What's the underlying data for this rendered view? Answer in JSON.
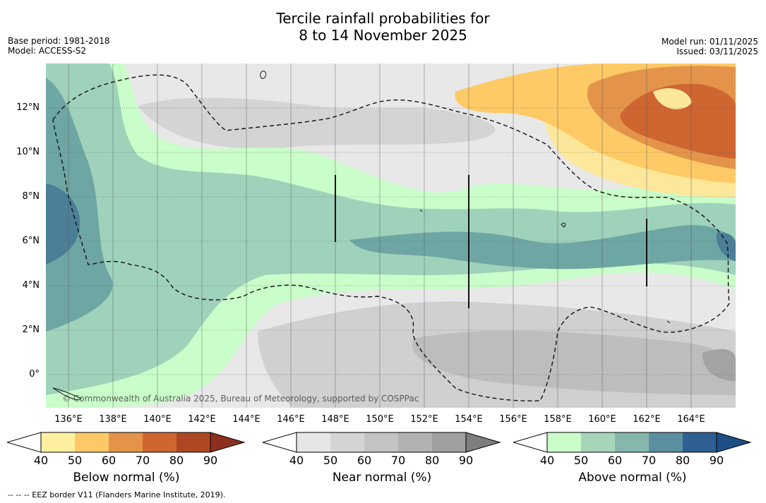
{
  "title_line1": "Tercile rainfall probabilities for",
  "title_line2": "8 to 14 November 2025",
  "base_period": "Base period: 1981-2018",
  "model": "Model: ACCESS-S2",
  "model_run": "Model run: 01/11/2025",
  "issued": "Issued: 03/11/2025",
  "credit": "© Commonwealth of Australia 2025, Bureau of Meteorology, supported by COSPPac",
  "footnote": "--  --  -- EEZ border V11 (Flanders Marine Institute, 2019).",
  "lat_labels": [
    "12°N",
    "10°N",
    "8°N",
    "6°N",
    "4°N",
    "2°N",
    "0°"
  ],
  "lon_labels": [
    "136°E",
    "138°E",
    "140°E",
    "142°E",
    "144°E",
    "146°E",
    "148°E",
    "150°E",
    "152°E",
    "154°E",
    "156°E",
    "158°E",
    "160°E",
    "162°E",
    "164°E"
  ],
  "colorbars": [
    {
      "title": "Below normal (%)",
      "ticks": [
        "40",
        "50",
        "60",
        "70",
        "80",
        "90"
      ],
      "colors": [
        "#fff0a0",
        "#fdc966",
        "#e3944a",
        "#cf6530",
        "#ad4822",
        "#8c2f1e"
      ]
    },
    {
      "title": "Near normal (%)",
      "ticks": [
        "40",
        "50",
        "60",
        "70",
        "80",
        "90"
      ],
      "colors": [
        "#e6e6e6",
        "#d4d4d4",
        "#c3c3c3",
        "#b1b1b1",
        "#9f9f9f",
        "#7e7e7e"
      ]
    },
    {
      "title": "Above normal (%)",
      "ticks": [
        "40",
        "50",
        "60",
        "70",
        "80",
        "90"
      ],
      "colors": [
        "#c9fdc9",
        "#a6d6b9",
        "#86b7ac",
        "#5b8fa0",
        "#2f5f93",
        "#1e4e86"
      ]
    }
  ],
  "map_colors": {
    "below": [
      "#fde79a",
      "#fdca66",
      "#e3944a",
      "#cf6530"
    ],
    "near": [
      "#e6e6e6",
      "#d6d6d6",
      "#c3c3c3",
      "#a8a8a8"
    ],
    "above": [
      "#c9fdc9",
      "#9fd2bb",
      "#6ea6a4",
      "#4b7f98"
    ]
  }
}
